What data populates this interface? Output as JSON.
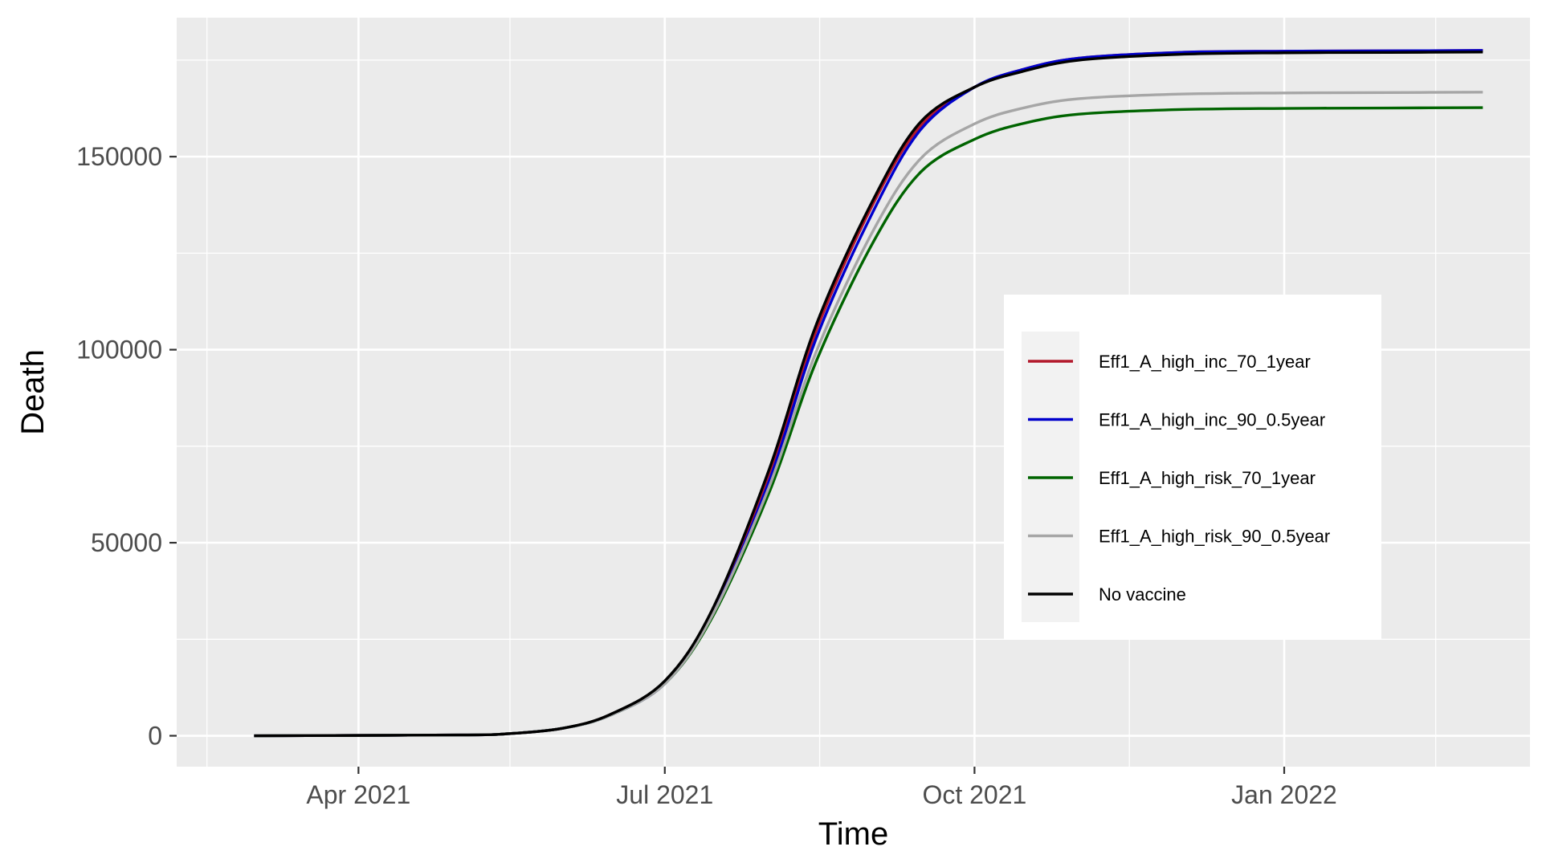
{
  "chart_data": {
    "type": "line",
    "title": "",
    "xlabel": "Time",
    "ylabel": "Death",
    "xlim": [
      "2021-02-06",
      "2022-03-15"
    ],
    "ylim": [
      -8000,
      186000
    ],
    "grid": true,
    "legend_position": "right",
    "x_ticks": [
      {
        "date": "2021-04-01",
        "label": "Apr 2021"
      },
      {
        "date": "2021-07-01",
        "label": "Jul 2021"
      },
      {
        "date": "2021-10-01",
        "label": "Oct 2021"
      },
      {
        "date": "2022-01-01",
        "label": "Jan 2022"
      }
    ],
    "x_minor_ticks": [
      "2021-02-15",
      "2021-05-16",
      "2021-08-16",
      "2021-11-16",
      "2022-02-15"
    ],
    "y_ticks": [
      {
        "value": 0,
        "label": "0"
      },
      {
        "value": 50000,
        "label": "50000"
      },
      {
        "value": 100000,
        "label": "100000"
      },
      {
        "value": 150000,
        "label": "150000"
      }
    ],
    "y_minor_ticks": [
      25000,
      75000,
      125000,
      175000
    ],
    "x": [
      "2021-03-01",
      "2021-05-01",
      "2021-05-15",
      "2021-06-01",
      "2021-06-15",
      "2021-07-01",
      "2021-07-15",
      "2021-08-01",
      "2021-08-15",
      "2021-09-01",
      "2021-09-15",
      "2021-10-01",
      "2021-10-15",
      "2021-11-01",
      "2021-12-01",
      "2022-01-01",
      "2022-02-01",
      "2022-03-01"
    ],
    "series": [
      {
        "name": "Eff1_A_high_inc_70_1year",
        "color": "#b2182b",
        "values": [
          0,
          200,
          500,
          2000,
          5500,
          14000,
          32000,
          68000,
          105000,
          138000,
          158000,
          168000,
          172500,
          175500,
          177000,
          177300,
          177400,
          177500
        ]
      },
      {
        "name": "Eff1_A_high_inc_90_0.5year",
        "color": "#0000cc",
        "values": [
          0,
          200,
          500,
          2000,
          5400,
          13500,
          31000,
          66000,
          103000,
          136000,
          157000,
          168000,
          172500,
          175500,
          177000,
          177300,
          177400,
          177500
        ]
      },
      {
        "name": "Eff1_A_high_risk_70_1year",
        "color": "#006400",
        "values": [
          0,
          200,
          500,
          2000,
          5400,
          13500,
          30500,
          63000,
          97000,
          128000,
          146000,
          154500,
          158500,
          161000,
          162200,
          162500,
          162600,
          162700
        ]
      },
      {
        "name": "Eff1_A_high_risk_90_0.5year",
        "color": "#a6a6a6",
        "values": [
          0,
          200,
          500,
          2000,
          5400,
          13500,
          31000,
          64500,
          99500,
          131000,
          149500,
          158500,
          162500,
          165000,
          166200,
          166500,
          166600,
          166700
        ]
      },
      {
        "name": "No vaccine",
        "color": "#000000",
        "values": [
          0,
          200,
          500,
          2000,
          5600,
          14200,
          32500,
          69000,
          106500,
          139000,
          159000,
          168000,
          172000,
          175000,
          176500,
          176900,
          177000,
          177100
        ]
      }
    ]
  }
}
